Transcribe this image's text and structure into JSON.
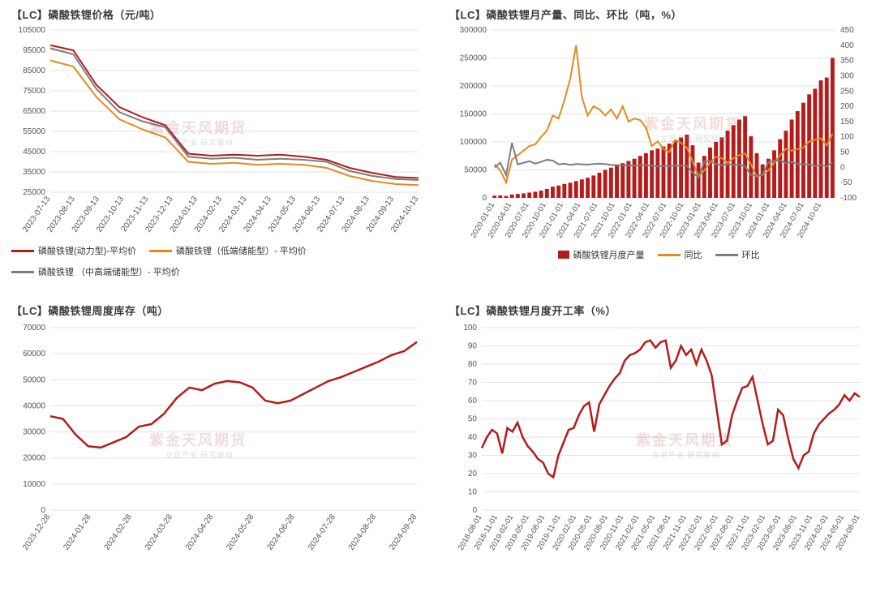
{
  "watermark": {
    "main": "紫金天风期货",
    "sub": "立足产业 研究驱动"
  },
  "panel1": {
    "title": "【LC】磷酸铁锂价格（元/吨）",
    "type": "line",
    "background_color": "#ffffff",
    "grid_color": "#e3e3e3",
    "ylim": [
      25000,
      105000
    ],
    "ytick_step": 10000,
    "x_labels": [
      "2023-07-13",
      "2023-08-13",
      "2023-09-13",
      "2023-10-13",
      "2023-11-13",
      "2023-12-13",
      "2024-01-13",
      "2024-02-13",
      "2024-03-13",
      "2024-04-13",
      "2024-05-13",
      "2024-06-13",
      "2024-07-13",
      "2024-08-13",
      "2024-09-13",
      "2024-10-13"
    ],
    "series": [
      {
        "name": "磷酸铁锂(动力型)-平均价",
        "color": "#b41c1c",
        "width": 2,
        "y": [
          97500,
          95000,
          78000,
          67000,
          62000,
          58000,
          44000,
          43000,
          43500,
          43000,
          43500,
          42500,
          41000,
          37000,
          34500,
          32500,
          32000
        ]
      },
      {
        "name": "磷酸铁锂（低端储能型）- 平均价",
        "color": "#e58a1f",
        "width": 2,
        "y": [
          90000,
          87000,
          72000,
          61000,
          56000,
          52000,
          40000,
          39000,
          39500,
          38500,
          39000,
          38500,
          37000,
          33000,
          30500,
          29000,
          28500
        ]
      },
      {
        "name": "磷酸铁锂 （中高端储能型）- 平均价",
        "color": "#7d7d7d",
        "width": 2,
        "y": [
          96000,
          93000,
          76000,
          64500,
          60000,
          57000,
          42500,
          41500,
          42000,
          41000,
          41500,
          41000,
          40000,
          35500,
          33000,
          31500,
          31000
        ]
      }
    ],
    "legend_order": [
      0,
      1,
      2
    ],
    "title_fontsize": 13,
    "tick_fontsize": 10
  },
  "panel2": {
    "title": "【LC】磷酸铁锂月产量、同比、环比（吨，%）",
    "type": "bar+line-dual-axis",
    "background_color": "#ffffff",
    "grid_color": "#e3e3e3",
    "yL": {
      "lim": [
        0,
        300000
      ],
      "step": 50000
    },
    "yR": {
      "lim": [
        -100,
        450
      ],
      "step": 50
    },
    "x_labels": [
      "2020-01-01",
      "2020-04-01",
      "2020-07-01",
      "2020-10-01",
      "2021-01-01",
      "2021-04-01",
      "2021-07-01",
      "2021-10-01",
      "2022-01-01",
      "2022-04-01",
      "2022-07-01",
      "2022-10-01",
      "2023-01-01",
      "2023-04-01",
      "2023-07-01",
      "2023-10-01",
      "2024-01-01",
      "2024-04-01",
      "2024-07-01",
      "2024-10-01"
    ],
    "bars": {
      "name": "磷酸铁锂月度产量",
      "color": "#b41c1c",
      "y": [
        4000,
        4500,
        3500,
        6000,
        7000,
        8000,
        9500,
        11000,
        13000,
        16000,
        20000,
        22000,
        25000,
        27000,
        30000,
        33000,
        36000,
        40000,
        45000,
        50000,
        54000,
        58000,
        62000,
        66000,
        70000,
        75000,
        80000,
        85000,
        88000,
        92000,
        97000,
        102000,
        108000,
        113000,
        94000,
        63000,
        75000,
        90000,
        100000,
        108000,
        120000,
        130000,
        140000,
        146000,
        110000,
        80000,
        60000,
        70000,
        85000,
        105000,
        120000,
        140000,
        155000,
        170000,
        185000,
        195000,
        210000,
        215000,
        250000
      ]
    },
    "line_yy": {
      "name": "同比",
      "color": "#e58a1f",
      "width": 2,
      "y": [
        10,
        -10,
        -50,
        25,
        40,
        55,
        70,
        75,
        100,
        120,
        170,
        160,
        220,
        290,
        400,
        230,
        170,
        200,
        190,
        170,
        190,
        160,
        200,
        150,
        160,
        155,
        130,
        70,
        85,
        60,
        50,
        90,
        80,
        65,
        20,
        -30,
        -10,
        15,
        35,
        30,
        15,
        30,
        40,
        45,
        10,
        -30,
        -25,
        -10,
        15,
        40,
        60,
        55,
        60,
        65,
        85,
        90,
        95,
        72,
        110
      ]
    },
    "line_mm": {
      "name": "环比",
      "color": "#7d7d7d",
      "width": 2,
      "y": [
        0,
        15,
        -25,
        80,
        10,
        15,
        20,
        12,
        18,
        25,
        22,
        10,
        12,
        8,
        11,
        10,
        9,
        11,
        12,
        11,
        8,
        7,
        7,
        6,
        6,
        7,
        7,
        6,
        3,
        4,
        5,
        5,
        6,
        5,
        -17,
        -33,
        19,
        20,
        11,
        7,
        11,
        8,
        8,
        4,
        -25,
        -27,
        -25,
        17,
        21,
        23,
        14,
        17,
        11,
        10,
        9,
        5,
        8,
        3,
        16
      ]
    },
    "legend_order": [
      "bars",
      "line_yy",
      "line_mm"
    ]
  },
  "panel3": {
    "title": "【LC】磷酸铁锂周度库存（吨）",
    "type": "line",
    "background_color": "#ffffff",
    "grid_color": "#e3e3e3",
    "ylim": [
      0,
      70000
    ],
    "ytick_step": 10000,
    "x_labels": [
      "2023-12-28",
      "2024-01-28",
      "2024-02-28",
      "2024-03-28",
      "2024-04-28",
      "2024-05-28",
      "2024-06-28",
      "2024-07-28",
      "2024-08-28",
      "2024-09-28"
    ],
    "series": [
      {
        "name": "库存",
        "color": "#b41c1c",
        "width": 2.5,
        "y": [
          36000,
          35000,
          29000,
          24500,
          24000,
          26000,
          28000,
          32000,
          33000,
          37000,
          43000,
          47000,
          46000,
          48500,
          49500,
          49000,
          47000,
          42000,
          41000,
          42000,
          44500,
          47000,
          49500,
          51000,
          53000,
          55000,
          57000,
          59500,
          61000,
          64500
        ]
      }
    ]
  },
  "panel4": {
    "title": "【LC】磷酸铁锂月度开工率（%）",
    "type": "line",
    "background_color": "#ffffff",
    "grid_color": "#e3e3e3",
    "ylim": [
      0,
      100
    ],
    "ytick_step": 10,
    "x_labels": [
      "2018-08-01",
      "2018-11-01",
      "2019-02-01",
      "2019-05-01",
      "2019-08-01",
      "2019-11-01",
      "2020-02-01",
      "2020-05-01",
      "2020-08-01",
      "2020-11-01",
      "2021-02-01",
      "2021-05-01",
      "2021-08-01",
      "2021-11-01",
      "2022-02-01",
      "2022-05-01",
      "2022-08-01",
      "2022-11-01",
      "2023-02-01",
      "2023-05-01",
      "2023-08-01",
      "2023-11-01",
      "2024-02-01",
      "2024-05-01",
      "2024-08-01"
    ],
    "series": [
      {
        "name": "开工率",
        "color": "#b41c1c",
        "width": 2.5,
        "y": [
          34,
          40,
          44,
          42,
          31,
          45,
          43,
          48,
          40,
          35,
          32,
          28,
          26,
          20,
          18,
          30,
          37,
          44,
          45,
          52,
          57,
          59,
          43,
          58,
          63,
          68,
          72,
          75,
          82,
          85,
          86,
          88,
          92,
          93,
          89,
          92,
          93,
          78,
          82,
          90,
          85,
          88,
          80,
          88,
          82,
          74,
          55,
          36,
          38,
          52,
          60,
          67,
          68,
          73,
          60,
          47,
          36,
          38,
          55,
          52,
          39,
          28,
          23,
          30,
          32,
          42,
          47,
          50,
          53,
          55,
          58,
          63,
          60,
          64,
          62
        ]
      }
    ]
  }
}
